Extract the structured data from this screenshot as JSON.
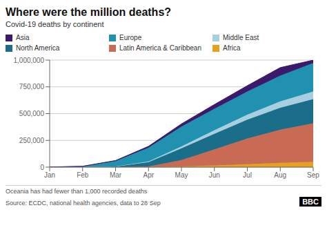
{
  "chart_data": {
    "type": "area",
    "title": "Where were the million deaths?",
    "subtitle": "Covid-19 deaths by continent",
    "footnote": "Oceania has had fewer than 1,000 recorded deaths",
    "source": "Source: ECDC, national health agencies, data to 28 Sep",
    "annotations": [
      "BBC"
    ],
    "categories": [
      "Jan",
      "Feb",
      "Mar",
      "Apr",
      "May",
      "Jun",
      "Jul",
      "Aug",
      "Sep"
    ],
    "stacked": true,
    "grid": true,
    "legend": "top",
    "ylim": [
      0,
      1000000
    ],
    "yticks": [
      0,
      {
        "value": 250000,
        "label": "250,000"
      },
      {
        "value": 500000,
        "label": "500,000"
      },
      {
        "value": 750000,
        "label": "750,000"
      },
      {
        "value": 1000000,
        "label": "1,000,000"
      }
    ],
    "series": [
      {
        "name": "Africa",
        "color": "#e8a020",
        "values": [
          50,
          100,
          300,
          1500,
          6000,
          16000,
          28000,
          40000,
          50000
        ]
      },
      {
        "name": "Latin America & Caribbean",
        "color": "#c96a55",
        "values": [
          100,
          200,
          600,
          5000,
          60000,
          150000,
          240000,
          310000,
          360000
        ]
      },
      {
        "name": "North America",
        "color": "#1a6e8a",
        "values": [
          500,
          1500,
          5000,
          40000,
          110000,
          145000,
          175000,
          205000,
          225000
        ]
      },
      {
        "name": "Middle East",
        "color": "#a8cfe0",
        "values": [
          50,
          200,
          1000,
          6000,
          18000,
          34000,
          48000,
          60000,
          72000
        ]
      },
      {
        "name": "Europe",
        "color": "#2191b0",
        "values": [
          300,
          5000,
          50000,
          130000,
          185000,
          200000,
          215000,
          240000,
          265000
        ]
      },
      {
        "name": "Asia",
        "color": "#3b1a6b",
        "values": [
          500,
          1500,
          5000,
          12000,
          25000,
          40000,
          55000,
          75000,
          28000
        ]
      }
    ]
  }
}
